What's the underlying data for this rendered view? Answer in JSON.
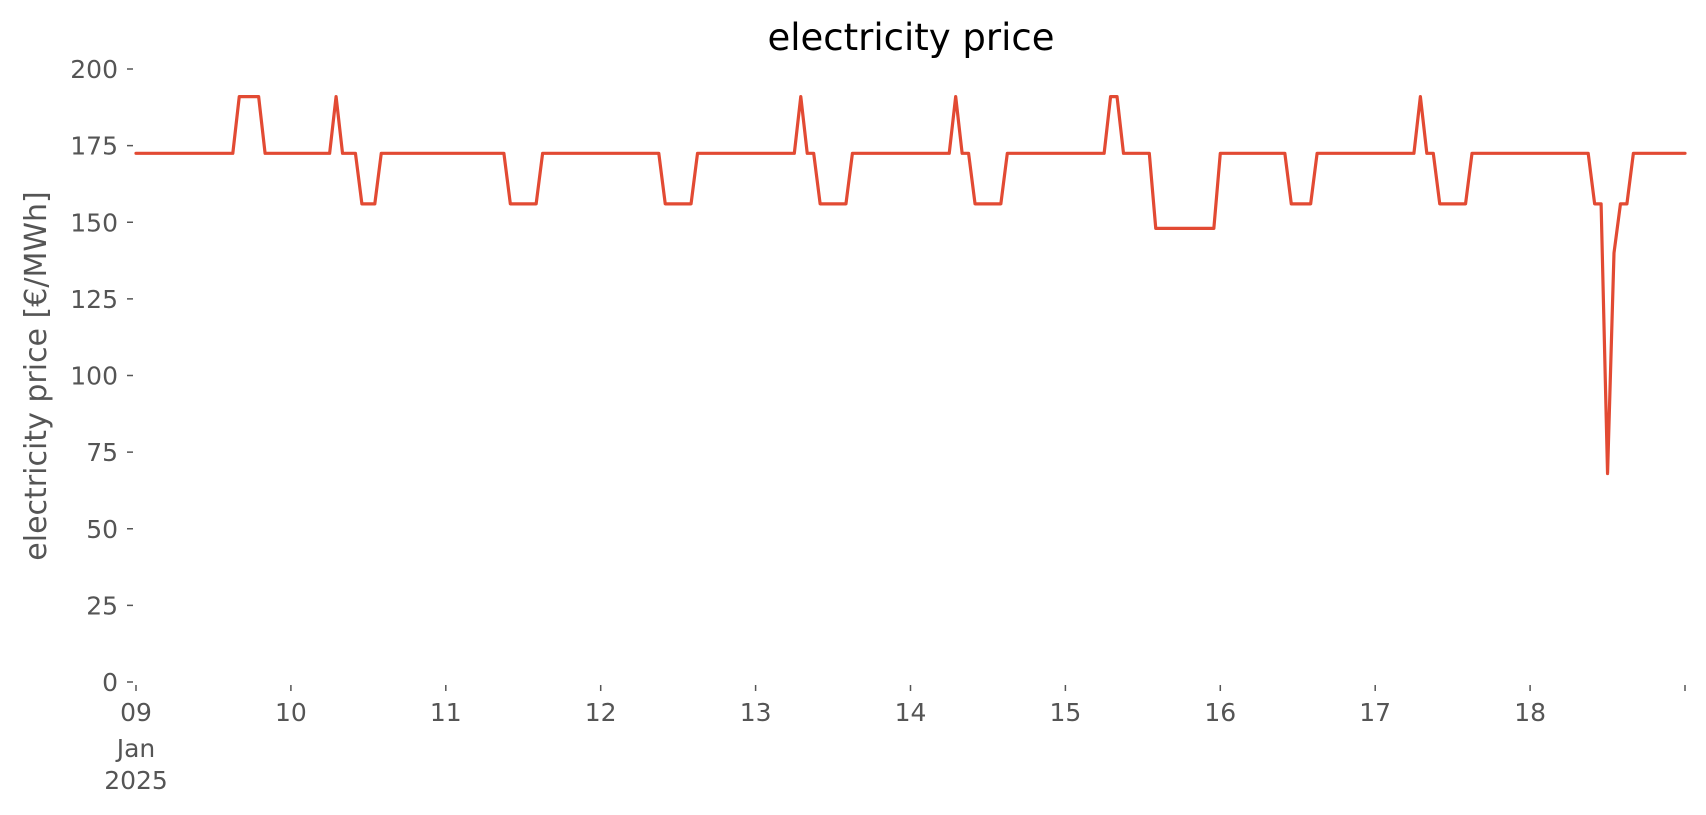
{
  "chart_data": {
    "type": "line",
    "title": "electricity price",
    "xlabel": "",
    "ylabel": "electricity price [€/MWh]",
    "ylim": [
      0,
      200
    ],
    "yticks": [
      0,
      25,
      50,
      75,
      100,
      125,
      150,
      175,
      200
    ],
    "xlim": [
      "2025-01-09T00:00",
      "2025-01-19T00:00"
    ],
    "xticks": [
      {
        "date": "2025-01-09",
        "label": "09",
        "sublabel": [
          "Jan",
          "2025"
        ]
      },
      {
        "date": "2025-01-10",
        "label": "10"
      },
      {
        "date": "2025-01-11",
        "label": "11"
      },
      {
        "date": "2025-01-12",
        "label": "12"
      },
      {
        "date": "2025-01-13",
        "label": "13"
      },
      {
        "date": "2025-01-14",
        "label": "14"
      },
      {
        "date": "2025-01-15",
        "label": "15"
      },
      {
        "date": "2025-01-16",
        "label": "16"
      },
      {
        "date": "2025-01-17",
        "label": "17"
      },
      {
        "date": "2025-01-18",
        "label": "18"
      },
      {
        "date": "2025-01-19",
        "label": ""
      }
    ],
    "grid": false,
    "legend": "none",
    "color": "#E24A33",
    "series": [
      {
        "points": [
          [
            "2025-01-09T00:00",
            172.5
          ],
          [
            "2025-01-09T15:00",
            172.5
          ],
          [
            "2025-01-09T16:00",
            191
          ],
          [
            "2025-01-09T19:00",
            191
          ],
          [
            "2025-01-09T20:00",
            172.5
          ],
          [
            "2025-01-10T06:00",
            172.5
          ],
          [
            "2025-01-10T07:00",
            191
          ],
          [
            "2025-01-10T08:00",
            172.5
          ],
          [
            "2025-01-10T10:00",
            172.5
          ],
          [
            "2025-01-10T11:00",
            156
          ],
          [
            "2025-01-10T13:00",
            156
          ],
          [
            "2025-01-10T14:00",
            172.5
          ],
          [
            "2025-01-11T09:00",
            172.5
          ],
          [
            "2025-01-11T10:00",
            156
          ],
          [
            "2025-01-11T14:00",
            156
          ],
          [
            "2025-01-11T15:00",
            172.5
          ],
          [
            "2025-01-12T09:00",
            172.5
          ],
          [
            "2025-01-12T10:00",
            156
          ],
          [
            "2025-01-12T14:00",
            156
          ],
          [
            "2025-01-12T15:00",
            172.5
          ],
          [
            "2025-01-13T06:00",
            172.5
          ],
          [
            "2025-01-13T07:00",
            191
          ],
          [
            "2025-01-13T08:00",
            172.5
          ],
          [
            "2025-01-13T09:00",
            172.5
          ],
          [
            "2025-01-13T10:00",
            156
          ],
          [
            "2025-01-13T14:00",
            156
          ],
          [
            "2025-01-13T15:00",
            172.5
          ],
          [
            "2025-01-14T06:00",
            172.5
          ],
          [
            "2025-01-14T07:00",
            191
          ],
          [
            "2025-01-14T08:00",
            172.5
          ],
          [
            "2025-01-14T09:00",
            172.5
          ],
          [
            "2025-01-14T10:00",
            156
          ],
          [
            "2025-01-14T14:00",
            156
          ],
          [
            "2025-01-14T15:00",
            172.5
          ],
          [
            "2025-01-15T06:00",
            172.5
          ],
          [
            "2025-01-15T07:00",
            191
          ],
          [
            "2025-01-15T08:00",
            191
          ],
          [
            "2025-01-15T09:00",
            172.5
          ],
          [
            "2025-01-15T13:00",
            172.5
          ],
          [
            "2025-01-15T14:00",
            148
          ],
          [
            "2025-01-15T23:00",
            148
          ],
          [
            "2025-01-16T00:00",
            172.5
          ],
          [
            "2025-01-16T10:00",
            172.5
          ],
          [
            "2025-01-16T11:00",
            156
          ],
          [
            "2025-01-16T14:00",
            156
          ],
          [
            "2025-01-16T15:00",
            172.5
          ],
          [
            "2025-01-17T06:00",
            172.5
          ],
          [
            "2025-01-17T07:00",
            191
          ],
          [
            "2025-01-17T08:00",
            172.5
          ],
          [
            "2025-01-17T09:00",
            172.5
          ],
          [
            "2025-01-17T10:00",
            156
          ],
          [
            "2025-01-17T14:00",
            156
          ],
          [
            "2025-01-17T15:00",
            172.5
          ],
          [
            "2025-01-18T09:00",
            172.5
          ],
          [
            "2025-01-18T10:00",
            156
          ],
          [
            "2025-01-18T11:00",
            156
          ],
          [
            "2025-01-18T12:00",
            68
          ],
          [
            "2025-01-18T13:00",
            140
          ],
          [
            "2025-01-18T14:00",
            156
          ],
          [
            "2025-01-18T15:00",
            156
          ],
          [
            "2025-01-18T16:00",
            172.5
          ],
          [
            "2025-01-19T00:00",
            172.5
          ]
        ]
      }
    ]
  }
}
